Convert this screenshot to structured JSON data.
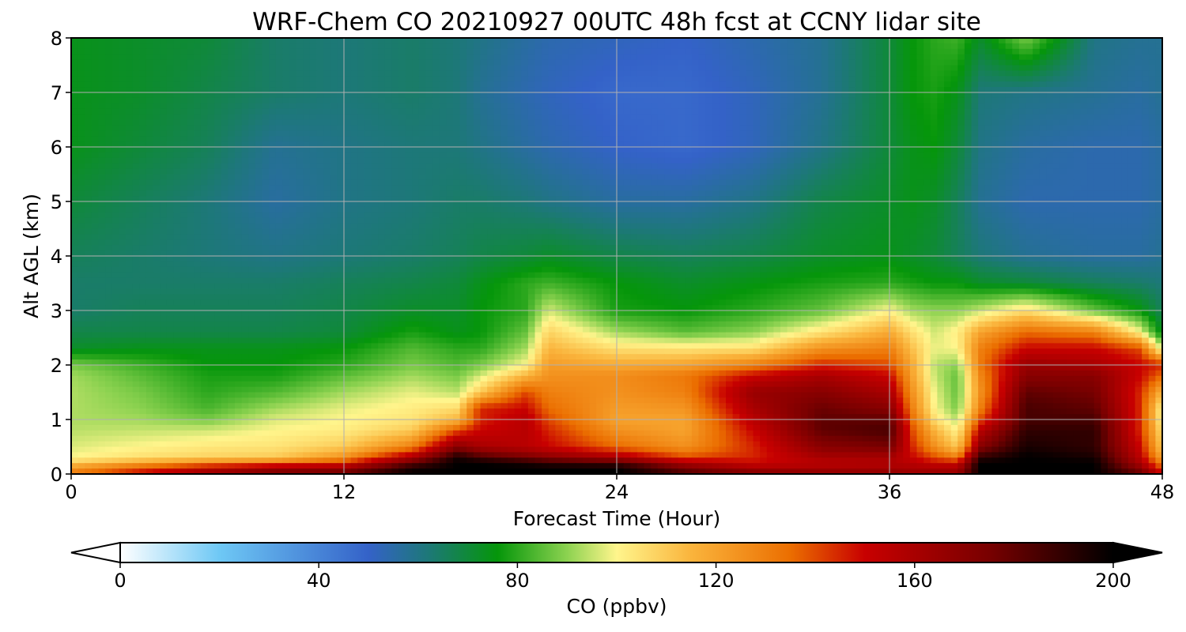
{
  "chart_data": {
    "type": "heatmap",
    "title": "WRF-Chem CO  20210927 00UTC 48h fcst at CCNY lidar site",
    "xlabel": "Forecast Time (Hour)",
    "ylabel": "Alt AGL (km)",
    "xlim": [
      0,
      48
    ],
    "ylim": [
      0,
      8
    ],
    "xticks": [
      0,
      12,
      24,
      36,
      48
    ],
    "yticks": [
      0,
      1,
      2,
      3,
      4,
      5,
      6,
      7,
      8
    ],
    "grid": true,
    "colorbar": {
      "label": "CO  (ppbv)",
      "min": 0,
      "max": 200,
      "ticks": [
        0,
        40,
        80,
        120,
        160,
        200
      ],
      "extend": "both",
      "placement": "bottom",
      "stops": [
        {
          "v": 0,
          "c": "#ffffff"
        },
        {
          "v": 20,
          "c": "#6ec8f5"
        },
        {
          "v": 50,
          "c": "#3462c8"
        },
        {
          "v": 62,
          "c": "#1d7878"
        },
        {
          "v": 76,
          "c": "#05960a"
        },
        {
          "v": 90,
          "c": "#8cd250"
        },
        {
          "v": 100,
          "c": "#fff58c"
        },
        {
          "v": 115,
          "c": "#fab43c"
        },
        {
          "v": 135,
          "c": "#eb6e00"
        },
        {
          "v": 150,
          "c": "#c80000"
        },
        {
          "v": 175,
          "c": "#780000"
        },
        {
          "v": 200,
          "c": "#000000"
        }
      ]
    },
    "x_hours": [
      0,
      3,
      6,
      9,
      12,
      15,
      17,
      18,
      20,
      21,
      24,
      27,
      30,
      33,
      36,
      37,
      38,
      39,
      40,
      42,
      45,
      47,
      48
    ],
    "y_km": [
      0,
      0.1,
      0.2,
      0.3,
      0.5,
      0.8,
      1.0,
      1.2,
      1.5,
      1.8,
      2.0,
      2.3,
      2.6,
      3.0,
      3.5,
      4.0,
      5.0,
      6.0,
      7.0,
      8.0
    ],
    "values": [
      [
        130,
        150,
        165,
        175,
        180,
        200,
        200,
        200,
        200,
        200,
        200,
        185,
        175,
        170,
        170,
        165,
        165,
        165,
        200,
        200,
        200,
        180,
        150
      ],
      [
        125,
        140,
        155,
        165,
        165,
        195,
        200,
        200,
        200,
        200,
        200,
        175,
        160,
        160,
        160,
        160,
        160,
        160,
        200,
        200,
        200,
        170,
        140
      ],
      [
        110,
        120,
        130,
        135,
        145,
        180,
        200,
        200,
        195,
        190,
        185,
        160,
        150,
        155,
        158,
        155,
        150,
        150,
        200,
        200,
        200,
        160,
        130
      ],
      [
        100,
        105,
        108,
        110,
        125,
        160,
        195,
        185,
        175,
        170,
        160,
        140,
        145,
        160,
        160,
        150,
        140,
        130,
        190,
        200,
        195,
        155,
        120
      ],
      [
        97,
        100,
        103,
        104,
        110,
        130,
        170,
        160,
        155,
        150,
        135,
        125,
        145,
        170,
        175,
        145,
        125,
        110,
        170,
        195,
        190,
        150,
        110
      ],
      [
        94,
        95,
        96,
        100,
        102,
        110,
        140,
        150,
        155,
        145,
        125,
        120,
        150,
        180,
        185,
        140,
        115,
        100,
        155,
        190,
        190,
        145,
        105
      ],
      [
        93,
        92,
        88,
        97,
        100,
        104,
        115,
        145,
        155,
        140,
        120,
        120,
        155,
        180,
        180,
        135,
        105,
        94,
        140,
        185,
        185,
        145,
        100
      ],
      [
        93,
        90,
        83,
        92,
        98,
        102,
        106,
        145,
        150,
        135,
        122,
        124,
        160,
        178,
        170,
        130,
        100,
        88,
        130,
        185,
        180,
        145,
        100
      ],
      [
        93,
        88,
        80,
        84,
        92,
        98,
        94,
        110,
        140,
        130,
        125,
        130,
        165,
        170,
        160,
        125,
        98,
        86,
        125,
        180,
        175,
        145,
        115
      ],
      [
        92,
        85,
        78,
        78,
        85,
        92,
        88,
        96,
        115,
        125,
        126,
        132,
        150,
        160,
        150,
        120,
        95,
        86,
        128,
        170,
        170,
        150,
        135
      ],
      [
        88,
        82,
        76,
        76,
        80,
        88,
        84,
        88,
        100,
        122,
        118,
        120,
        130,
        145,
        140,
        118,
        94,
        90,
        132,
        165,
        160,
        150,
        145
      ],
      [
        72,
        74,
        74,
        74,
        76,
        84,
        80,
        80,
        92,
        115,
        105,
        104,
        105,
        125,
        130,
        112,
        98,
        100,
        130,
        150,
        150,
        140,
        95
      ],
      [
        68,
        68,
        68,
        68,
        70,
        78,
        74,
        76,
        86,
        108,
        92,
        85,
        90,
        104,
        118,
        105,
        96,
        102,
        120,
        135,
        130,
        100,
        72
      ],
      [
        64,
        66,
        66,
        66,
        68,
        72,
        72,
        76,
        80,
        96,
        78,
        76,
        80,
        86,
        100,
        92,
        90,
        90,
        95,
        105,
        86,
        76,
        66
      ],
      [
        64,
        64,
        64,
        64,
        66,
        68,
        70,
        74,
        80,
        82,
        76,
        72,
        75,
        78,
        80,
        78,
        76,
        76,
        72,
        70,
        66,
        64,
        62
      ],
      [
        66,
        64,
        62,
        60,
        62,
        64,
        66,
        68,
        70,
        72,
        68,
        66,
        68,
        72,
        74,
        72,
        70,
        66,
        62,
        58,
        56,
        56,
        58
      ],
      [
        70,
        66,
        62,
        56,
        60,
        62,
        64,
        64,
        62,
        60,
        56,
        56,
        60,
        68,
        72,
        74,
        72,
        66,
        58,
        54,
        54,
        54,
        56
      ],
      [
        74,
        70,
        66,
        58,
        60,
        62,
        62,
        60,
        56,
        54,
        50,
        48,
        52,
        60,
        70,
        74,
        76,
        70,
        60,
        56,
        54,
        54,
        56
      ],
      [
        74,
        72,
        68,
        64,
        62,
        64,
        62,
        58,
        54,
        52,
        48,
        48,
        52,
        58,
        70,
        76,
        78,
        74,
        62,
        60,
        58,
        56,
        58
      ],
      [
        74,
        72,
        70,
        64,
        62,
        64,
        62,
        60,
        56,
        54,
        52,
        50,
        54,
        58,
        70,
        76,
        80,
        82,
        72,
        88,
        60,
        58,
        58
      ]
    ]
  }
}
